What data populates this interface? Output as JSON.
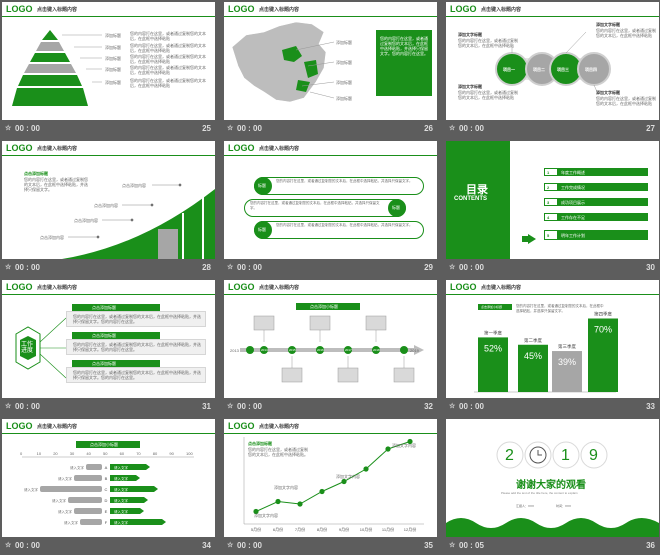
{
  "colors": {
    "accent": "#1a8f1a",
    "background": "#5d5d5d",
    "gray": "#a6a6a6"
  },
  "slides": [
    {
      "logo": "LOGO",
      "title": "点击键入标题内容",
      "time": "00 : 00",
      "number": "25"
    },
    {
      "logo": "LOGO",
      "title": "点击键入标题内容",
      "time": "00 : 00",
      "number": "26"
    },
    {
      "logo": "LOGO",
      "title": "点击键入标题内容",
      "time": "00 : 00",
      "number": "27"
    },
    {
      "logo": "LOGO",
      "title": "点击键入标题内容",
      "time": "00 : 00",
      "number": "28"
    },
    {
      "logo": "LOGO",
      "title": "点击键入标题内容",
      "time": "00 : 00",
      "number": "29"
    },
    {
      "time": "00 : 00",
      "number": "30"
    },
    {
      "logo": "LOGO",
      "title": "点击键入标题内容",
      "time": "00 : 00",
      "number": "31"
    },
    {
      "logo": "LOGO",
      "title": "点击键入标题内容",
      "time": "00 : 00",
      "number": "32"
    },
    {
      "logo": "LOGO",
      "title": "点击键入标题内容",
      "time": "00 : 00",
      "number": "33"
    },
    {
      "logo": "LOGO",
      "title": "点击键入标题内容",
      "time": "00 : 00",
      "number": "34"
    },
    {
      "logo": "LOGO",
      "title": "点击键入标题内容",
      "time": "00 : 00",
      "number": "35"
    },
    {
      "time": "00 : 05",
      "number": "36"
    }
  ],
  "s25": {
    "labels": [
      "添加标题",
      "添加标题",
      "添加标题",
      "添加标题",
      "添加标题"
    ],
    "desc": "您的内容打在这里，或者通过复制您的文本后，在此框中选择粘贴"
  },
  "s26": {
    "labels": [
      "添加标题",
      "添加标题",
      "添加标题",
      "添加标题"
    ],
    "box": "您的内容打在这里，或者通过复制您的文本后，在此框中选择粘贴，并选择只保留文字。您的内容打在这里。"
  },
  "s27": {
    "circles": [
      "项目一",
      "项目二",
      "项目三",
      "项目四"
    ],
    "title": "添加文字标题",
    "desc": "您的内容打在这里，或者通过复制您的文本后，在此框中选择粘贴"
  },
  "s28": {
    "heading": "点击添加标题",
    "desc": "您的内容打在这里，或者通过复制您的文本后，在此框中选择粘贴，并选择只保留文字。",
    "labels": [
      "点击添加内容",
      "点击添加内容",
      "点击添加内容",
      "点击添加内容"
    ]
  },
  "s29": {
    "badges": [
      "标题",
      "标题",
      "标题"
    ],
    "desc": "您的内容打在这里，或者通过复制您的文本后，在此框中选择粘贴，并选择只保留文字。"
  },
  "s30": {
    "heading": "目录",
    "sub": "CONTENTS",
    "items": [
      {
        "n": "1",
        "label": "年度工作概述"
      },
      {
        "n": "2",
        "label": "工作完成情况"
      },
      {
        "n": "3",
        "label": "成功项目展示"
      },
      {
        "n": "4",
        "label": "工作存在不足"
      },
      {
        "n": "5",
        "label": "明年工作计划"
      }
    ]
  },
  "s31": {
    "center": "工作进度",
    "tabs": [
      "点击添加标题",
      "点击添加标题",
      "点击添加标题"
    ],
    "desc": "您的内容打在这里，或者通过复制您的文本后，在此框中选择粘贴，并选择只保留文字。您的内容打在这里。"
  },
  "s32": {
    "tab": "点击添加小标题",
    "years": [
      "2013",
      "2014",
      "2015",
      "2016",
      "2017",
      "2018",
      "2019"
    ]
  },
  "s33": {
    "tab": "点击添加小标题",
    "desc": "您的内容打在这里，或者通过复制您的文本后，在此框中选择粘贴，并选择只保留文字。",
    "chart_data": {
      "type": "bar",
      "categories": [
        "第一季度",
        "第二季度",
        "第三季度",
        "第四季度"
      ],
      "values": [
        52,
        45,
        39,
        70
      ],
      "value_labels": [
        "52%",
        "45%",
        "39%",
        "70%"
      ]
    }
  },
  "s34": {
    "tab": "点击添加小标题",
    "ticks": [
      "0",
      "10",
      "20",
      "30",
      "40",
      "50",
      "60",
      "70",
      "80",
      "90",
      "100"
    ],
    "letters": [
      "A",
      "B",
      "C",
      "D",
      "E",
      "F"
    ],
    "left": "请入文字",
    "right": "请入文字"
  },
  "s35": {
    "heading": "点击添加标题",
    "desc": "您的内容打在这里，或者通过复制您的文本后，在此框中选择粘贴。",
    "chart_data": {
      "type": "line",
      "x": [
        "5月份",
        "6月份",
        "7月份",
        "8月份",
        "9月份",
        "10月份",
        "11月份",
        "12月份"
      ],
      "series": [
        {
          "values": [
            10,
            18,
            16,
            26,
            34,
            44,
            60,
            66
          ]
        }
      ]
    },
    "labels": [
      "添加文字内容",
      "添加文字内容",
      "添加文字内容",
      "添加文字内容"
    ]
  },
  "s36": {
    "digits": [
      "2",
      "1",
      "9"
    ],
    "thanks": "谢谢大家的观看",
    "sub": "Please add the text of the title here, the content to explain",
    "legend": [
      "汇报人：XXX",
      "时间：XXX"
    ]
  }
}
